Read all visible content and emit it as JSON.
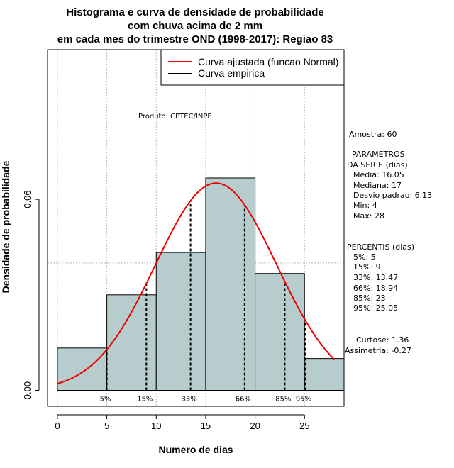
{
  "chart_data": {
    "type": "bar",
    "title_lines": [
      "Histograma e curva de densidade de probabilidade",
      "com chuva acima de 2 mm",
      "em cada mes do trimestre OND (1998-2017): Regiao 83"
    ],
    "xlabel": "Numero de dias",
    "ylabel": "Densidade de probabilidade",
    "xlim": [
      -1,
      29
    ],
    "ylim": [
      -0.005,
      0.107
    ],
    "x_ticks": [
      0,
      5,
      10,
      15,
      20,
      25
    ],
    "x_tick_labels": [
      "0",
      "5",
      "10",
      "15",
      "20",
      "25"
    ],
    "y_ticks": [
      0.0,
      0.06
    ],
    "y_tick_labels": [
      "0.00",
      "0.06"
    ],
    "grid_x": [
      0,
      5,
      10,
      15,
      20,
      25
    ],
    "grid_y": [
      0.04,
      0.1
    ],
    "bins": [
      {
        "start": 0,
        "end": 5,
        "density": 0.0133
      },
      {
        "start": 5,
        "end": 10,
        "density": 0.03
      },
      {
        "start": 10,
        "end": 15,
        "density": 0.0433
      },
      {
        "start": 15,
        "end": 20,
        "density": 0.0667
      },
      {
        "start": 20,
        "end": 25,
        "density": 0.0367
      },
      {
        "start": 25,
        "end": 29,
        "density": 0.01
      }
    ],
    "normal_fit": {
      "mean": 16.05,
      "sd": 6.13,
      "x_range": [
        0,
        28
      ]
    },
    "percentiles": [
      {
        "label": "5%",
        "value": 5
      },
      {
        "label": "15%",
        "value": 9
      },
      {
        "label": "33%",
        "value": 13.47
      },
      {
        "label": "66%",
        "value": 18.94
      },
      {
        "label": "85%",
        "value": 23
      },
      {
        "label": "95%",
        "value": 25.05
      }
    ],
    "legend": {
      "position": "top-right",
      "entries": [
        {
          "label": "Curva ajustada (funcao Normal)",
          "color": "#ee0000"
        },
        {
          "label": "Curva empirica",
          "color": "#000000"
        }
      ]
    },
    "product_label": "Produto: CPTEC/INPE",
    "colors": {
      "bar_fill": "#b7cdcd",
      "curve": "#ee0000",
      "grid": "#bbbbbb"
    }
  },
  "side_panel": {
    "sample": "Amostra: 60",
    "params_header": [
      "PARAMETROS",
      "DA SERIE (dias)"
    ],
    "params": [
      "Media: 16.05",
      "Mediana: 17",
      "Desvio padrao: 6.13",
      "Min: 4",
      "Max: 28"
    ],
    "percentis_header": "PERCENTIS (dias)",
    "percentis": [
      "5%: 5",
      "15%: 9",
      "33%: 13.47",
      "66%: 18.94",
      "85%: 23",
      "95%: 25.05"
    ],
    "curtose": "Curtose: 1.36",
    "assimetria": "Assimetria: -0.27"
  }
}
